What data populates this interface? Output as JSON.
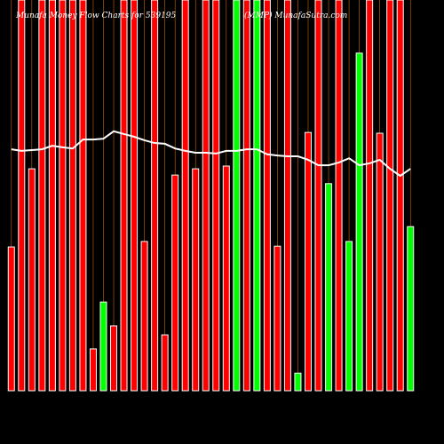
{
  "chart_data": {
    "type": "bar",
    "title": "Munafa Money Flow Charts for 539195",
    "subtitle": "(MMP) MunafaSutra.com",
    "categories": [
      null,
      null,
      null,
      null,
      null,
      null,
      null,
      null,
      null,
      null,
      null,
      null,
      null,
      null,
      null,
      null,
      null,
      null,
      null,
      null,
      null,
      null,
      null,
      null,
      null,
      null,
      null,
      null,
      null,
      null,
      null,
      null,
      null,
      null,
      null,
      null,
      null,
      null,
      null,
      null
    ],
    "values": [
      36.8,
      100,
      56.8,
      100,
      100,
      100,
      100,
      100,
      10.7,
      22.7,
      16.6,
      100,
      100,
      38.2,
      100,
      14.3,
      55.2,
      100,
      56.8,
      100,
      100,
      57.5,
      100,
      100,
      100,
      100,
      37,
      100,
      4.5,
      66.1,
      100,
      53,
      100,
      38.2,
      86.4,
      100,
      65.9,
      100,
      100,
      42
    ],
    "colors": [
      "#ff0000",
      "#ff0000",
      "#ff0000",
      "#ff0000",
      "#ff0000",
      "#ff0000",
      "#ff0000",
      "#ff0000",
      "#ff0000",
      "#00ff00",
      "#ff0000",
      "#ff0000",
      "#ff0000",
      "#ff0000",
      "#ff0000",
      "#ff0000",
      "#ff0000",
      "#ff0000",
      "#ff0000",
      "#ff0000",
      "#ff0000",
      "#ff0000",
      "#00ff00",
      "#ff0000",
      "#00ff00",
      "#ff0000",
      "#ff0000",
      "#ff0000",
      "#00ff00",
      "#ff0000",
      "#ff0000",
      "#00ff00",
      "#ff0000",
      "#00ff00",
      "#00ff00",
      "#ff0000",
      "#ff0000",
      "#ff0000",
      "#ff0000",
      "#00ff00"
    ],
    "line": {
      "color": "#ffffff",
      "values": [
        61.8,
        61.4,
        61.6,
        61.8,
        62.7,
        62.3,
        62.0,
        64.3,
        64.3,
        64.5,
        66.4,
        65.7,
        65.0,
        64.1,
        63.4,
        63.2,
        62.0,
        61.4,
        60.9,
        60.9,
        60.7,
        61.4,
        61.4,
        61.8,
        61.8,
        60.5,
        60.2,
        60.0,
        60.0,
        59.1,
        57.7,
        57.7,
        58.4,
        59.5,
        57.7,
        58.2,
        59.1,
        56.8,
        55.0,
        56.8
      ]
    },
    "ylim": [
      0,
      100
    ],
    "grid_color": "#cc6600"
  }
}
